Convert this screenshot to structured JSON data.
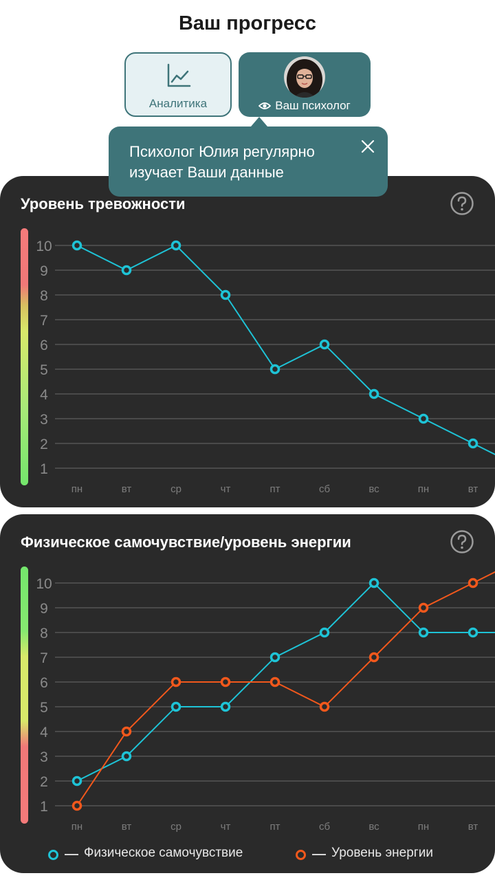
{
  "page_title": "Ваш прогресс",
  "tabs": {
    "analytics": {
      "label": "Аналитика",
      "icon": "line-chart-icon"
    },
    "psychologist": {
      "label": "Ваш психолог",
      "icon": "eye-icon"
    }
  },
  "tooltip": {
    "line1": "Психолог Юлия регулярно",
    "line2": "изучает Ваши данные",
    "close_icon": "close-icon"
  },
  "colors": {
    "accent": "#3e7479",
    "card_bg": "#2a2a2a",
    "series_cyan": "#1ec3d6",
    "series_orange": "#f2581c"
  },
  "anxiety": {
    "title": "Уровень тревожности",
    "help_icon": "question-circle-icon"
  },
  "energy": {
    "title": "Физическое самочувствие/уровень энергии",
    "help_icon": "question-circle-icon",
    "legend": [
      "Физическое самочувствие",
      "Уровень энергии"
    ]
  },
  "chart_data": [
    {
      "type": "line",
      "title": "Уровень тревожности",
      "categories": [
        "пн",
        "вт",
        "ср",
        "чт",
        "пт",
        "сб",
        "вс",
        "пн",
        "вт"
      ],
      "y_ticks": [
        1,
        2,
        3,
        4,
        5,
        6,
        7,
        8,
        9,
        10
      ],
      "ylim": [
        1,
        10
      ],
      "grid": true,
      "scale_gradient": "red (top) to green (bottom)",
      "series": [
        {
          "color": "#1ec3d6",
          "values": [
            10,
            9,
            10,
            8,
            5,
            6,
            4,
            3,
            2
          ]
        }
      ]
    },
    {
      "type": "line",
      "title": "Физическое самочувствие/уровень энергии",
      "categories": [
        "пн",
        "вт",
        "ср",
        "чт",
        "пт",
        "сб",
        "вс",
        "пн",
        "вт"
      ],
      "y_ticks": [
        1,
        2,
        3,
        4,
        5,
        6,
        7,
        8,
        9,
        10
      ],
      "ylim": [
        1,
        10
      ],
      "grid": true,
      "legend_position": "bottom",
      "scale_gradient": "green (top) to red (bottom)",
      "series": [
        {
          "name": "Физическое самочувствие",
          "color": "#1ec3d6",
          "values": [
            2,
            3,
            5,
            5,
            7,
            8,
            10,
            8,
            8
          ]
        },
        {
          "name": "Уровень энергии",
          "color": "#f2581c",
          "values": [
            1,
            4,
            6,
            6,
            6,
            5,
            7,
            9,
            10
          ]
        }
      ]
    }
  ]
}
